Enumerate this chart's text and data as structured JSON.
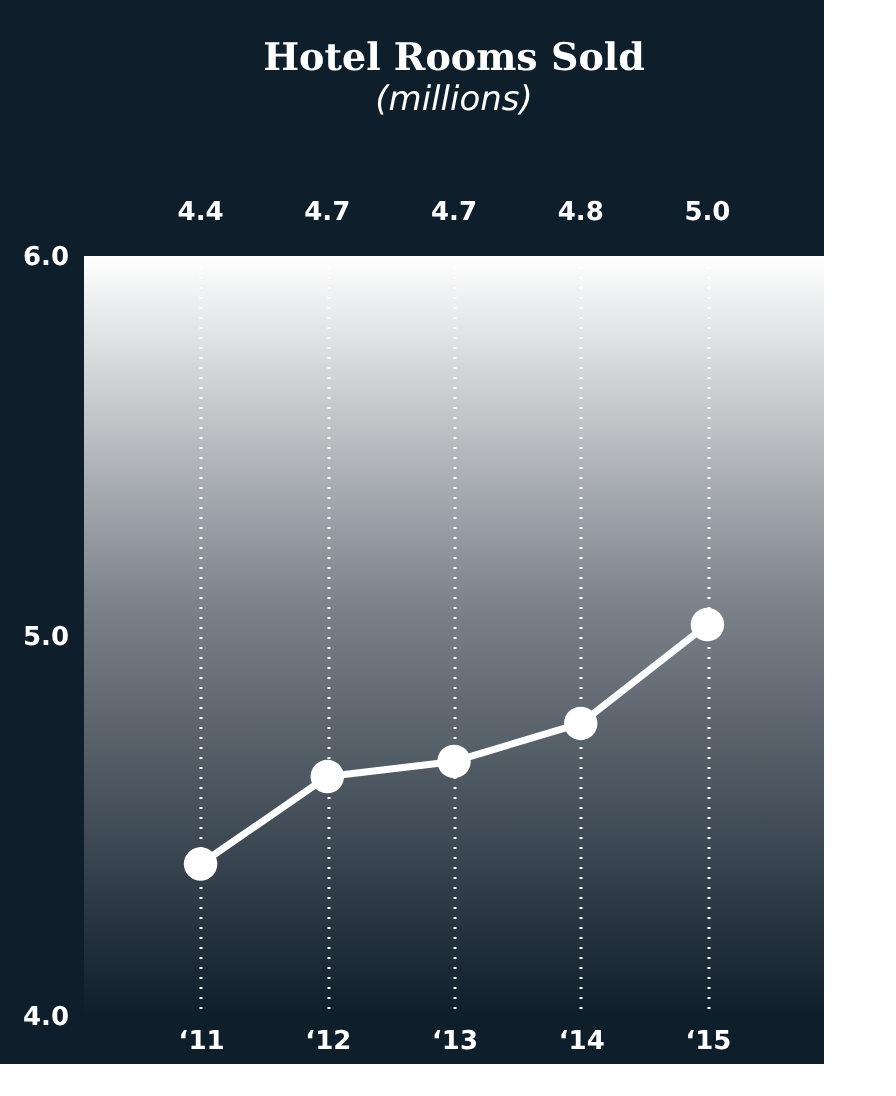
{
  "chart_data": {
    "type": "line",
    "title": "Hotel Rooms Sold",
    "subtitle": "(millions)",
    "categories": [
      "‘11",
      "‘12",
      "‘13",
      "‘14",
      "‘15"
    ],
    "series": [
      {
        "color": "#ffffff",
        "values": [
          4.4,
          4.63,
          4.67,
          4.77,
          5.03
        ]
      }
    ],
    "annotations": [
      "4.4",
      "4.7",
      "4.7",
      "4.8",
      "5.0"
    ],
    "ylim": [
      4.0,
      6.0
    ],
    "yticks": [
      {
        "value": 4,
        "label": "4.0"
      },
      {
        "value": 5,
        "label": "5.0"
      },
      {
        "value": 6,
        "label": "6.0"
      }
    ],
    "grid": "x",
    "marker": "circle",
    "line_style": "solid",
    "legend": false
  }
}
